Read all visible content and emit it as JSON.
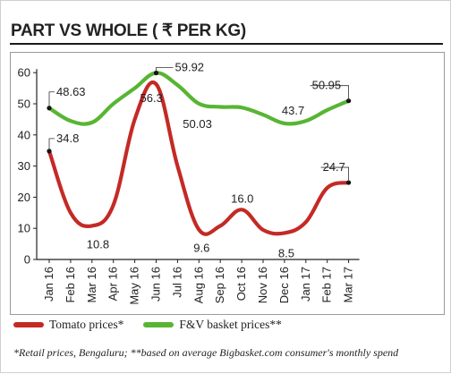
{
  "title": "PART VS WHOLE ( ₹ PER KG)",
  "footnote": "*Retail prices, Bengaluru; **based on average Bigbasket.com consumer's monthly spend",
  "colors": {
    "tomato": "#c42a25",
    "basket": "#58b533"
  },
  "chart_data": {
    "type": "line",
    "categories": [
      "Jan 16",
      "Feb 16",
      "Mar 16",
      "Apr 16",
      "May 16",
      "Jun 16",
      "Jul 16",
      "Aug 16",
      "Sep 16",
      "Oct 16",
      "Nov 16",
      "Dec 16",
      "Jan 17",
      "Feb 17",
      "Mar 17"
    ],
    "ylim": [
      0,
      60
    ],
    "yticks": [
      0,
      10,
      20,
      30,
      40,
      50,
      60
    ],
    "grid": false,
    "legend_position": "bottom",
    "series": [
      {
        "name": "Tomato prices*",
        "values": [
          34.8,
          15,
          10.8,
          17.5,
          45,
          56.3,
          30,
          9.6,
          10.8,
          16.0,
          9.5,
          8.5,
          12,
          23,
          24.7
        ]
      },
      {
        "name": "F&V basket prices**",
        "values": [
          48.63,
          44.5,
          44,
          50,
          55,
          59.92,
          56,
          50.03,
          49,
          48.8,
          46.5,
          43.7,
          44.5,
          48,
          50.95
        ]
      }
    ],
    "annotations": [
      {
        "series": 0,
        "index": 0,
        "text": "34.8"
      },
      {
        "series": 0,
        "index": 2,
        "text": "10.8"
      },
      {
        "series": 0,
        "index": 5,
        "text": "56.3"
      },
      {
        "series": 0,
        "index": 7,
        "text": "9.6"
      },
      {
        "series": 0,
        "index": 9,
        "text": "16.0"
      },
      {
        "series": 0,
        "index": 11,
        "text": "8.5"
      },
      {
        "series": 0,
        "index": 14,
        "text": "24.7"
      },
      {
        "series": 1,
        "index": 0,
        "text": "48.63"
      },
      {
        "series": 1,
        "index": 5,
        "text": "59.92"
      },
      {
        "series": 1,
        "index": 7,
        "text": "50.03"
      },
      {
        "series": 1,
        "index": 11,
        "text": "43.7"
      },
      {
        "series": 1,
        "index": 14,
        "text": "50.95"
      }
    ]
  }
}
